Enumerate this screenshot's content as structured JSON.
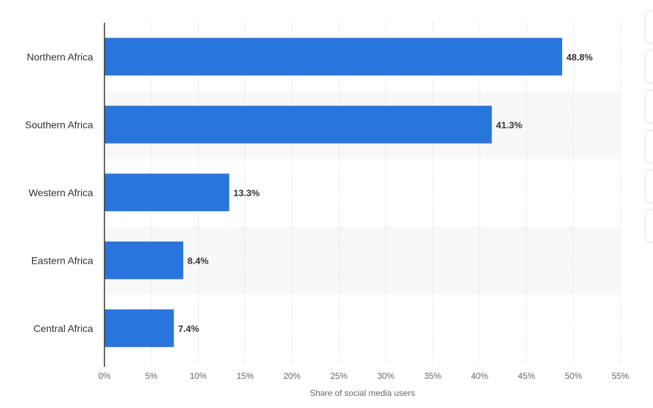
{
  "chart_data": {
    "type": "bar",
    "orientation": "horizontal",
    "categories": [
      "Northern Africa",
      "Southern Africa",
      "Western Africa",
      "Eastern Africa",
      "Central Africa"
    ],
    "values": [
      48.8,
      41.3,
      13.3,
      8.4,
      7.4
    ],
    "value_labels": [
      "48.8%",
      "41.3%",
      "13.3%",
      "8.4%",
      "7.4%"
    ],
    "xlabel": "Share of social media users",
    "ylabel": "",
    "xlim": [
      0,
      55
    ],
    "ticks": [
      0,
      5,
      10,
      15,
      20,
      25,
      30,
      35,
      40,
      45,
      50,
      55
    ],
    "tick_labels": [
      "0%",
      "5%",
      "10%",
      "15%",
      "20%",
      "25%",
      "30%",
      "35%",
      "40%",
      "45%",
      "50%",
      "55%"
    ],
    "grid": true,
    "colors": {
      "bar": "#2876dd",
      "band": "#f8f8f8",
      "grid": "#cccccc",
      "axis": "#333333"
    }
  }
}
